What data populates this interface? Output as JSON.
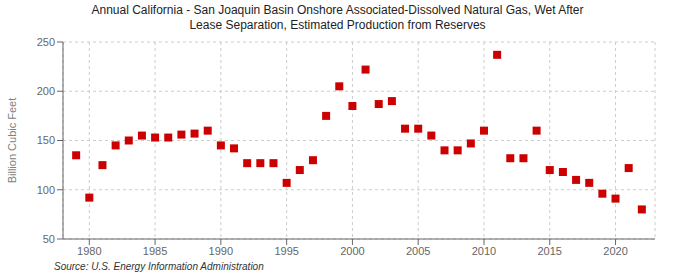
{
  "chart_data": {
    "type": "scatter",
    "title": "Annual California - San Joaquin Basin Onshore Associated-Dissolved Natural Gas, Wet After\nLease Separation, Estimated Production from Reserves",
    "y_label": "Billion Cubic Feet",
    "annotations": [
      "Source: U.S. Energy Information Administration"
    ],
    "x": [
      1979,
      1980,
      1981,
      1982,
      1983,
      1984,
      1985,
      1986,
      1987,
      1988,
      1989,
      1990,
      1991,
      1992,
      1993,
      1994,
      1995,
      1996,
      1997,
      1998,
      1999,
      2000,
      2001,
      2002,
      2003,
      2004,
      2005,
      2006,
      2007,
      2008,
      2009,
      2010,
      2011,
      2012,
      2013,
      2014,
      2015,
      2016,
      2017,
      2018,
      2019,
      2020,
      2021,
      2022
    ],
    "values": [
      135,
      92,
      125,
      145,
      150,
      155,
      153,
      153,
      156,
      157,
      160,
      145,
      142,
      127,
      127,
      127,
      107,
      120,
      130,
      175,
      205,
      185,
      222,
      187,
      190,
      162,
      162,
      155,
      140,
      140,
      147,
      160,
      237,
      132,
      132,
      160,
      120,
      118,
      110,
      107,
      96,
      91,
      122,
      80
    ],
    "color": "#cc0000",
    "marker": "square",
    "xlim": [
      1978,
      2023
    ],
    "ylim": [
      50,
      250
    ],
    "xticks": [
      1980,
      1985,
      1990,
      1995,
      2000,
      2005,
      2010,
      2015,
      2020
    ],
    "yticks": [
      50,
      100,
      150,
      200,
      250
    ],
    "grid": true
  }
}
